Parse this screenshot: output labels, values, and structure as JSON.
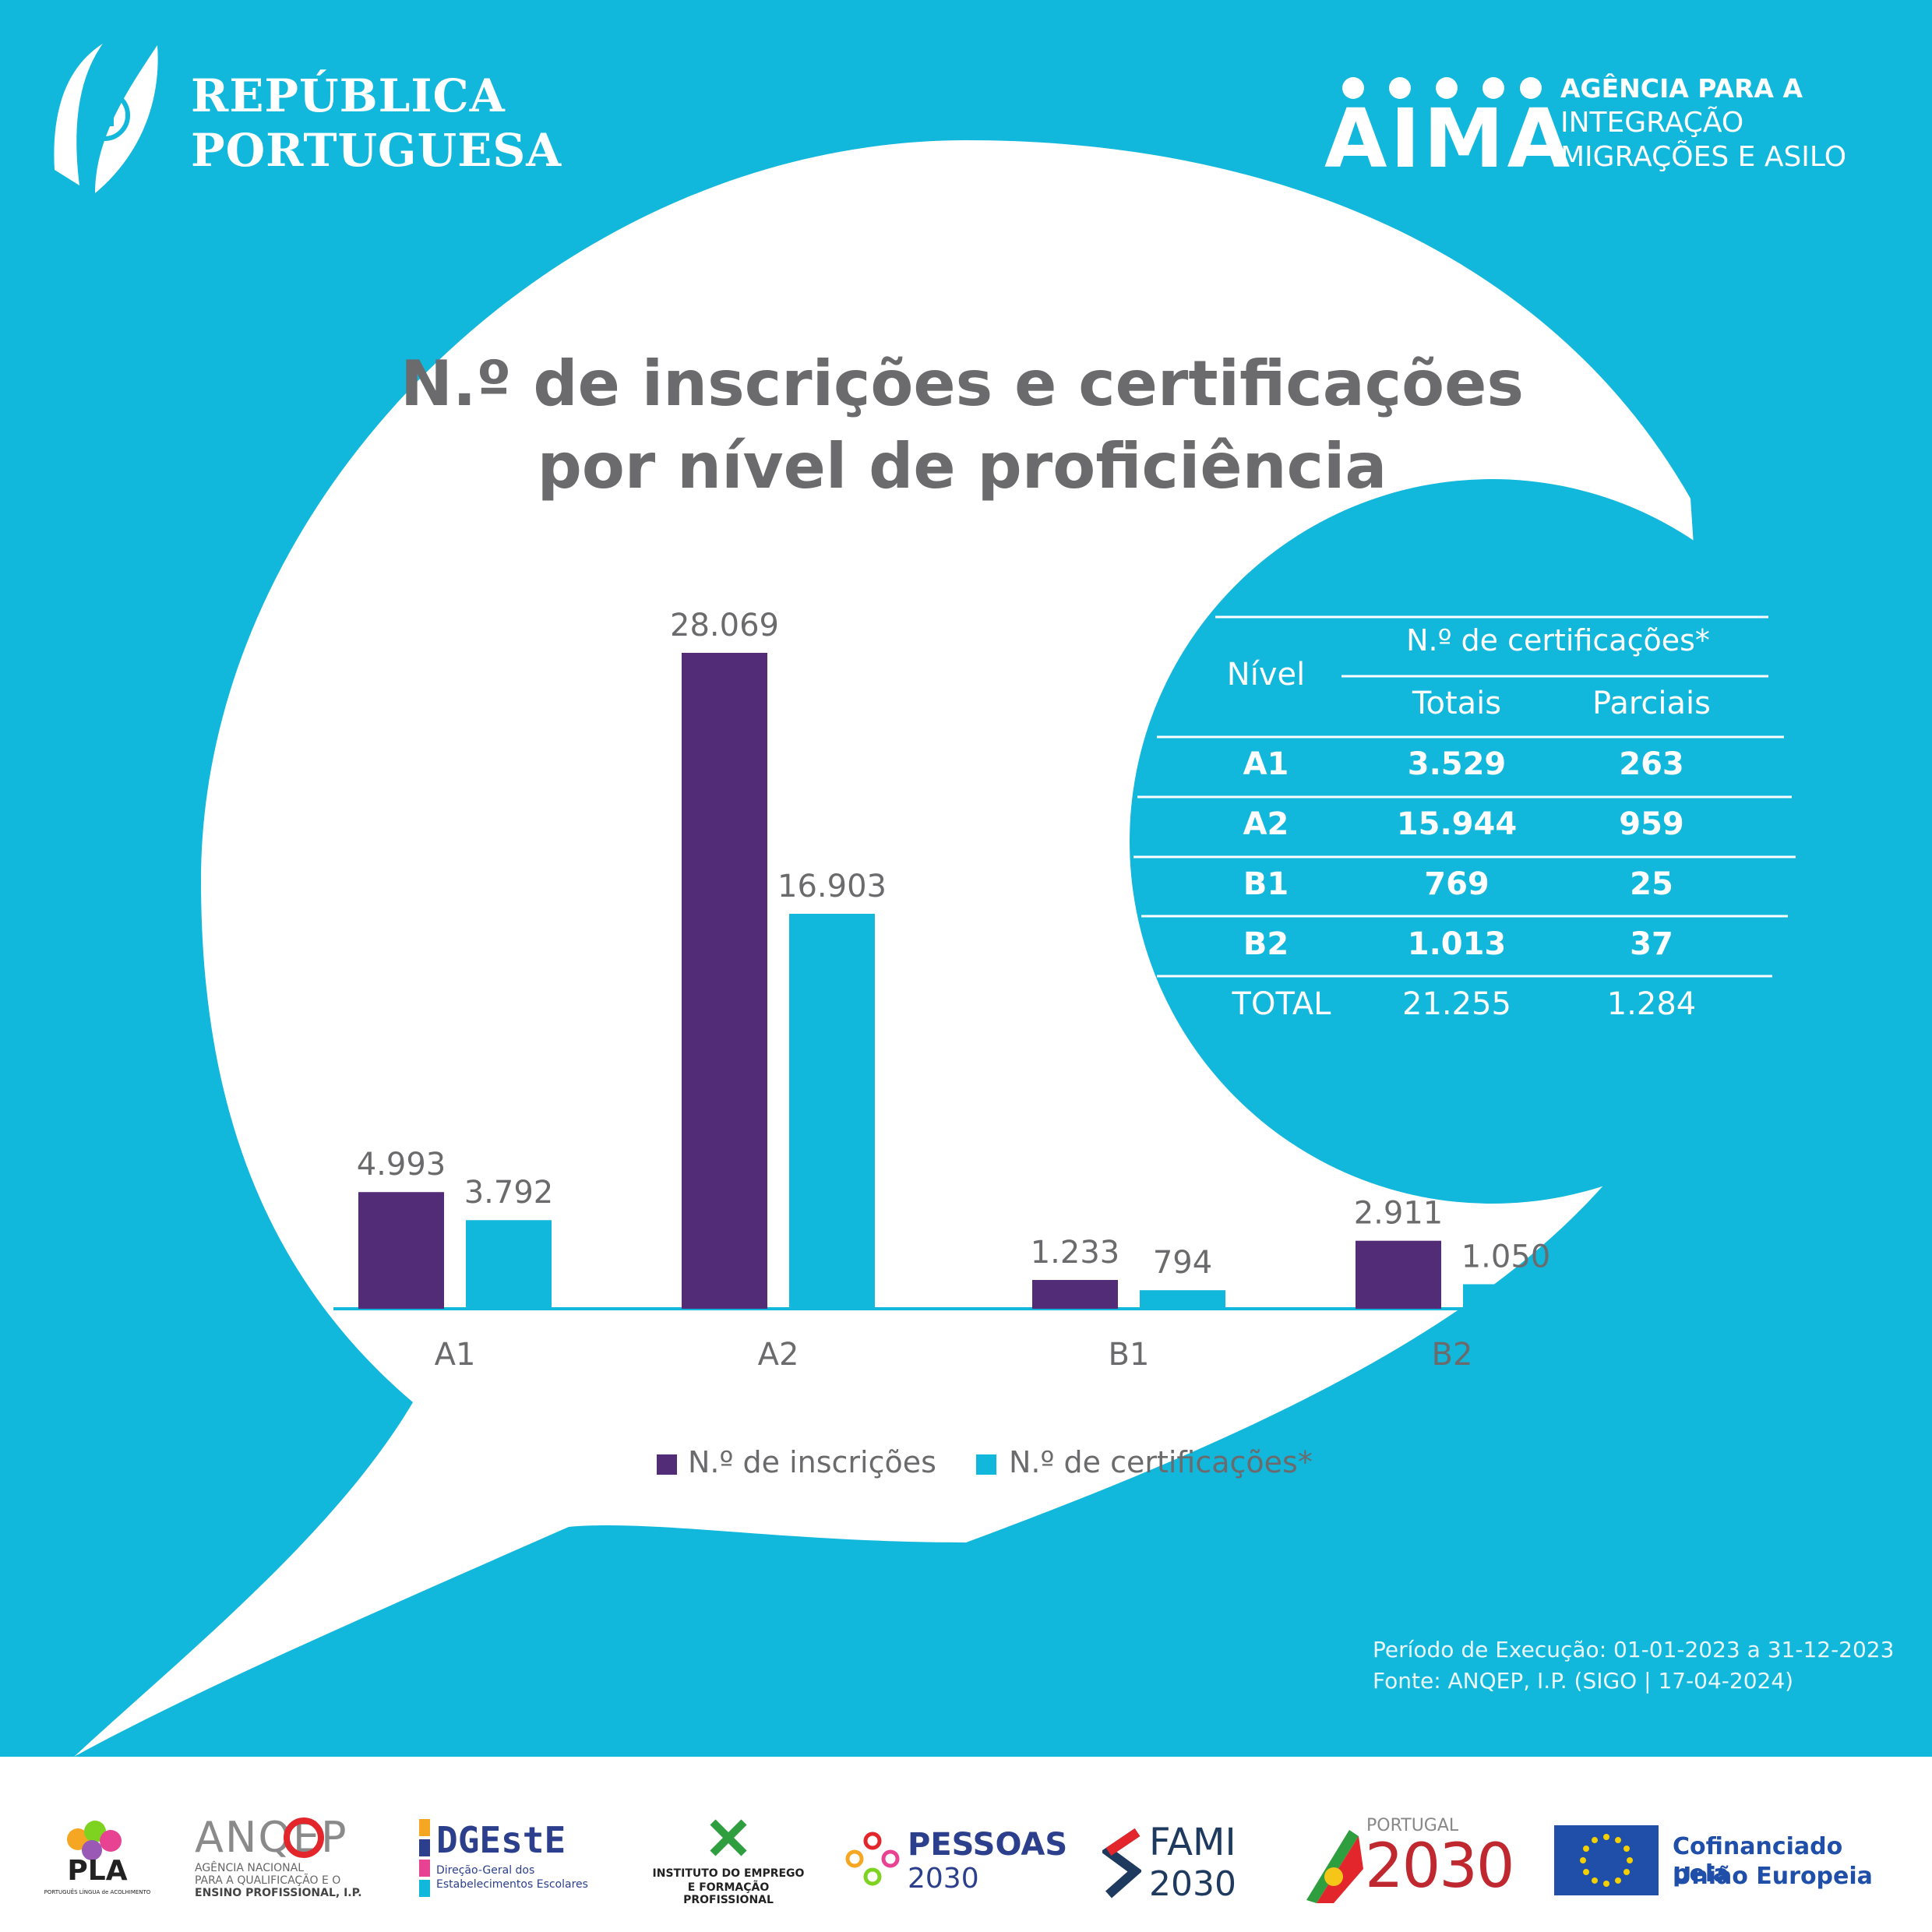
{
  "header": {
    "left_logo": {
      "line1": "REPÚBLICA",
      "line2": "PORTUGUESA"
    },
    "right_logo": {
      "word": "AIMA",
      "line1": "AGÊNCIA PARA A",
      "line2": "INTEGRAÇÃO",
      "line3": "MIGRAÇÕES E ASILO"
    }
  },
  "colors": {
    "background": "#12b7dc",
    "inscricoes": "#532c78",
    "certificacoes": "#12b7dc",
    "text": "#6b6b6d"
  },
  "chart_data": {
    "type": "bar",
    "title": "N.º de inscrições e certificações por nível de proficiência",
    "title_line1": "N.º de inscrições e certificações",
    "title_line2": "por nível de proficiência",
    "categories": [
      "A1",
      "A2",
      "B1",
      "B2"
    ],
    "series": [
      {
        "name": "N.º de inscrições",
        "values": [
          4993,
          28069,
          1233,
          2911
        ],
        "labels": [
          "4.993",
          "28.069",
          "1.233",
          "2.911"
        ]
      },
      {
        "name": "N.º de certificações*",
        "values": [
          3792,
          16903,
          794,
          1050
        ],
        "labels": [
          "3.792",
          "16.903",
          "794",
          "1.050"
        ]
      }
    ],
    "ylim": [
      0,
      28069
    ],
    "legend": "bottom"
  },
  "table": {
    "header_level": "Nível",
    "header_group": "N.º de certificações*",
    "header_totais": "Totais",
    "header_parciais": "Parciais",
    "rows": [
      {
        "level": "A1",
        "totais": "3.529",
        "parciais": "263"
      },
      {
        "level": "A2",
        "totais": "15.944",
        "parciais": "959"
      },
      {
        "level": "B1",
        "totais": "769",
        "parciais": "25"
      },
      {
        "level": "B2",
        "totais": "1.013",
        "parciais": "37"
      }
    ],
    "total": {
      "level": "TOTAL",
      "totais": "21.255",
      "parciais": "1.284"
    }
  },
  "footnote": {
    "line1": "Período de Execução: 01-01-2023 a 31-12-2023",
    "line2": "Fonte: ANQEP, I.P. (SIGO | 17-04-2024)"
  },
  "footer": {
    "pla": "PLA",
    "pla_sub": "PORTUGUÊS LÍNGUA de ACOLHIMENTO",
    "anqep": "ANQEP",
    "anqep_sub1": "AGÊNCIA NACIONAL",
    "anqep_sub2": "PARA A QUALIFICAÇÃO E O",
    "anqep_sub3": "ENSINO PROFISSIONAL, I.P.",
    "dgeste": "DGEstE",
    "dgeste_sub1": "Direção-Geral dos",
    "dgeste_sub2": "Estabelecimentos Escolares",
    "iefp_sub1": "INSTITUTO DO EMPREGO",
    "iefp_sub2": "E FORMAÇÃO PROFISSIONAL",
    "pessoas": "PESSOAS",
    "pessoas_year": "2030",
    "fami": "FAMI",
    "fami_year": "2030",
    "portugal": "PORTUGAL",
    "portugal_year": "2030",
    "eu_line1": "Cofinanciado pela",
    "eu_line2": "União Europeia"
  }
}
